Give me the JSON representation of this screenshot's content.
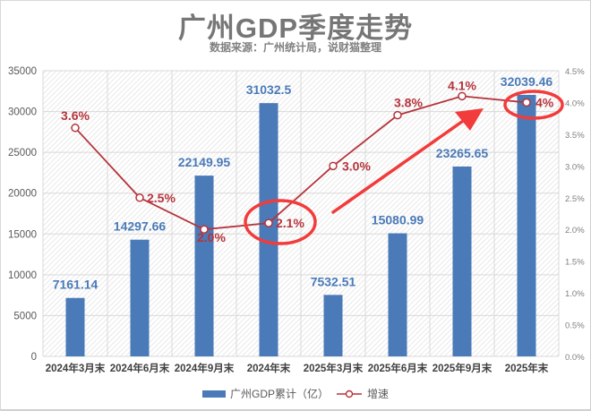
{
  "title": "广州GDP季度走势",
  "subtitle": "数据来源：广州统计局，说财猫整理",
  "legend": {
    "bar_label": "广州GDP累计（亿）",
    "line_label": "增速"
  },
  "colors": {
    "bar": "#4a7ab8",
    "bar_label": "#4a7ab8",
    "line": "#b5343c",
    "line_label": "#b5343c",
    "annotation": "#f23b3b",
    "axis_text": "#595959",
    "category_text": "#404040"
  },
  "chart_data": {
    "type": "bar+line",
    "title": "广州GDP季度走势",
    "subtitle": "数据来源：广州统计局，说财猫整理",
    "categories": [
      "2024年3月末",
      "2024年6月末",
      "2024年9月末",
      "2024年末",
      "2025年3月末",
      "2025年6月末",
      "2025年9月末",
      "2025年末"
    ],
    "series": [
      {
        "name": "广州GDP累计（亿）",
        "type": "bar",
        "axis": "left",
        "values": [
          7161.14,
          14297.66,
          22149.95,
          31032.5,
          7532.51,
          15080.99,
          23265.65,
          32039.46
        ],
        "labels": [
          "7161.14",
          "14297.66",
          "22149.95",
          "31032.5",
          "7532.51",
          "15080.99",
          "23265.65",
          "32039.46"
        ]
      },
      {
        "name": "增速",
        "type": "line",
        "axis": "right",
        "values": [
          3.6,
          2.5,
          2.0,
          2.1,
          3.0,
          3.8,
          4.1,
          4.0
        ],
        "labels": [
          "3.6%",
          "2.5%",
          "2.0%",
          "2.1%",
          "3.0%",
          "3.8%",
          "4.1%",
          "4%"
        ]
      }
    ],
    "left_axis": {
      "ylim": [
        0,
        35000
      ],
      "ticks": [
        "35000",
        "30000",
        "25000",
        "20000",
        "15000",
        "10000",
        "5000",
        "0"
      ]
    },
    "right_axis": {
      "ylim": [
        0,
        4.5
      ],
      "ticks": [
        "4.5%",
        "4.0%",
        "3.5%",
        "3.0%",
        "2.5%",
        "2.0%",
        "1.5%",
        "1.0%",
        "0.5%",
        "0.0%"
      ]
    },
    "grid": true,
    "legend_position": "bottom",
    "annotations": [
      {
        "type": "ellipse",
        "target": "2024年末 2.1%"
      },
      {
        "type": "ellipse",
        "target": "2025年末 4%"
      },
      {
        "type": "arrow",
        "direction": "up-right"
      }
    ]
  }
}
